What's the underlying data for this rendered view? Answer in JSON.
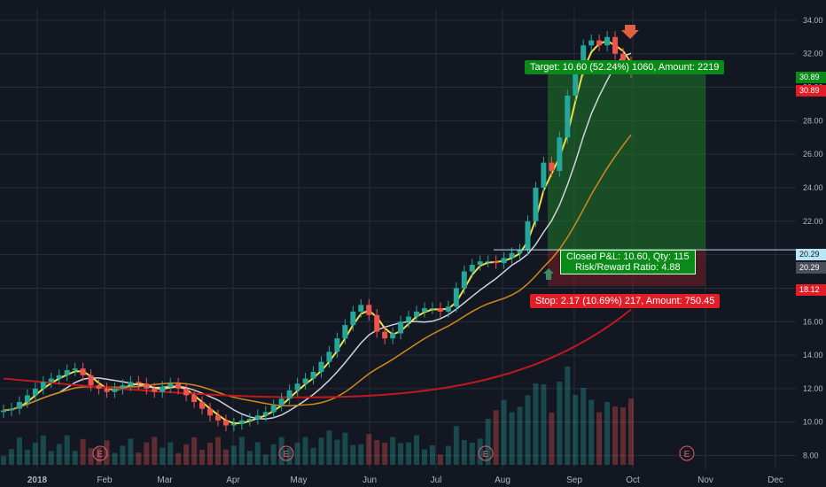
{
  "chart_data": {
    "type": "candlestick",
    "symbol_context": "daily price chart with moving averages and volume",
    "x_tick_labels": [
      "2018",
      "Feb",
      "Mar",
      "Apr",
      "May",
      "Jun",
      "Jul",
      "Aug",
      "Sep",
      "Oct",
      "Nov",
      "Dec"
    ],
    "y_tick_labels": [
      "8.00",
      "10.00",
      "12.00",
      "14.00",
      "16.00",
      "18.00",
      "20.00",
      "22.00",
      "24.00",
      "26.00",
      "28.00",
      "30.00",
      "32.00",
      "34.00"
    ],
    "ylim": [
      7.5,
      35
    ],
    "price_series_close_approx": [
      10.7,
      10.8,
      11.2,
      11.6,
      12.0,
      12.4,
      12.6,
      12.8,
      13.1,
      13.2,
      12.8,
      12.2,
      12.0,
      11.8,
      12.0,
      12.2,
      12.4,
      12.3,
      12.0,
      11.8,
      12.1,
      12.3,
      12.0,
      11.6,
      11.2,
      10.8,
      10.4,
      10.1,
      9.8,
      9.9,
      10.1,
      10.2,
      10.4,
      10.6,
      11.0,
      11.4,
      11.9,
      12.3,
      12.6,
      13.0,
      13.6,
      14.2,
      15.0,
      15.8,
      16.6,
      17.0,
      16.4,
      15.4,
      15.0,
      15.3,
      16.0,
      16.3,
      16.6,
      16.8,
      16.8,
      16.6,
      16.9,
      18.0,
      19.0,
      19.4,
      19.6,
      19.6,
      19.5,
      19.8,
      20.1,
      20.3,
      22.0,
      24.0,
      25.5,
      25.0,
      27.0,
      29.5,
      31.0,
      32.5,
      32.8,
      32.5,
      33.0,
      32.0,
      31.5,
      30.9
    ],
    "series": [
      {
        "name": "",
        "color": "#f0e040",
        "kind": "EMA (fast)"
      },
      {
        "name": "",
        "color": "#d0d4dc",
        "kind": "MA (medium)"
      },
      {
        "name": "",
        "color": "#d08a1c",
        "kind": "MA (slow)"
      },
      {
        "name": "",
        "color": "#c01820",
        "kind": "MA (200)"
      }
    ],
    "volume_shown": true,
    "grid": true
  },
  "annotations": {
    "target_label": "Target: 10.60 (52.24%) 1060, Amount: 2219",
    "pnl_line1": "Closed P&L: 10.60, Qty: 115",
    "pnl_line2": "Risk/Reward Ratio: 4.88",
    "stop_label": "Stop: 2.17 (10.69%) 217, Amount: 750.45",
    "earnings_marker": "E"
  },
  "price_tags": [
    {
      "value": "30.89",
      "bg": "#0a8a19",
      "fg": "#ffffff"
    },
    {
      "value": "30.89",
      "bg": "#e11d28",
      "fg": "#ffffff"
    },
    {
      "value": "20.29",
      "bg": "#b9e6f5",
      "fg": "#131722"
    },
    {
      "value": "20.29",
      "bg": "#4a4e5a",
      "fg": "#ffffff"
    },
    {
      "value": "18.12",
      "bg": "#e11d28",
      "fg": "#ffffff"
    }
  ],
  "colors": {
    "background": "#131722",
    "grid": "#2a2e39",
    "up_candle": "#26a69a",
    "down_candle": "#ef5350",
    "target_zone": "#1f7a28",
    "stop_zone": "#7a1f28"
  }
}
